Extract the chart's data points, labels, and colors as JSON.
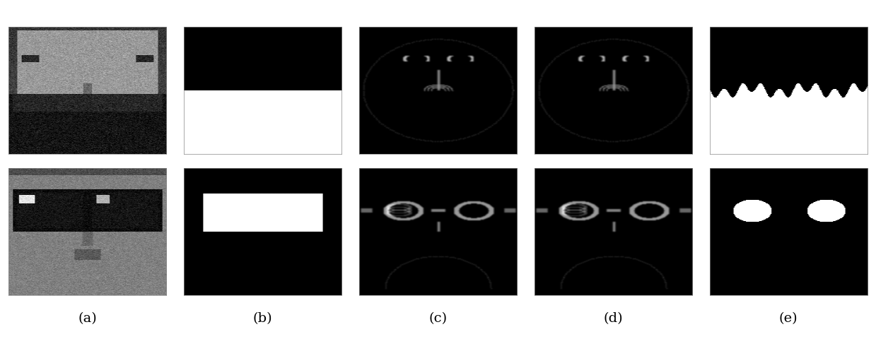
{
  "labels": [
    "(a)",
    "(b)",
    "(c)",
    "(d)",
    "(e)"
  ],
  "label_fontsize": 14,
  "fig_width": 12.39,
  "fig_height": 4.8,
  "background_color": "#ffffff",
  "rows": 2,
  "cols": 5
}
